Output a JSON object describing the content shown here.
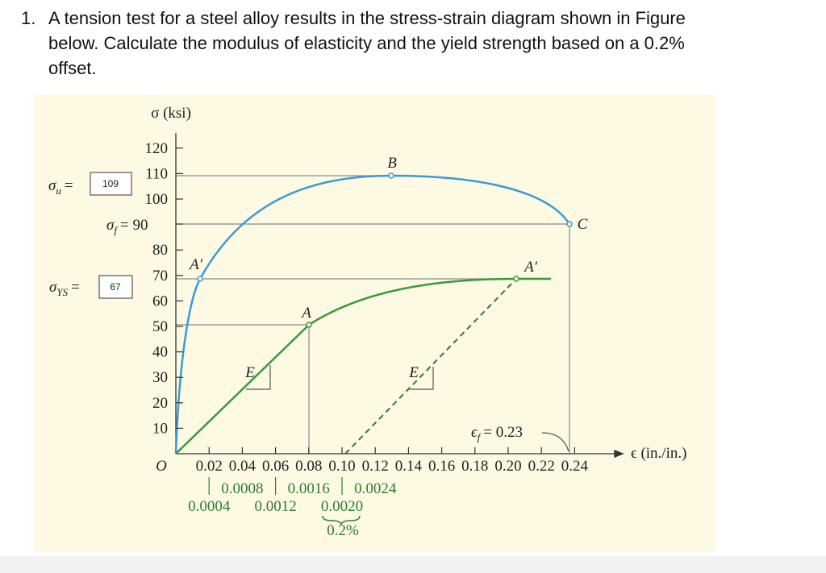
{
  "question": {
    "number": "1.",
    "lines": [
      "A tension test for a steel alloy results in the stress-strain diagram shown in Figure",
      "below. Calculate the modulus of elasticity and the yield strength based on a 0.2%",
      "offset."
    ]
  },
  "figure": {
    "y_axis_label": "σ (ksi)",
    "x_axis_label": "ϵ (in./in.)",
    "origin": "O",
    "y_tick_labels": [
      "120",
      "110",
      "100",
      "80",
      "70",
      "60",
      "50",
      "40",
      "30",
      "20",
      "10"
    ],
    "x_tick_labels": [
      "0.02",
      "0.04",
      "0.06",
      "0.08",
      "0.10",
      "0.12",
      "0.14",
      "0.16",
      "0.18",
      "0.20",
      "0.22",
      "0.24"
    ],
    "small_strain_upper": [
      "0.0008",
      "0.0016",
      "0.0024"
    ],
    "small_strain_lower": [
      "0.0004",
      "0.0012",
      "0.0020"
    ],
    "offset_label": "0.2%",
    "sigma_f": {
      "symbol": "σ",
      "sub": "f",
      "text": "= 90"
    },
    "sigma_u": {
      "symbol": "σ",
      "sub": "u",
      "eq": "=",
      "answer": "109"
    },
    "sigma_ys": {
      "symbol": "σ",
      "sub": "YS",
      "eq": "=",
      "answer": "67"
    },
    "epsilon_f": {
      "symbol": "ϵ",
      "sub": "f",
      "text": "= 0.23"
    },
    "point_labels": {
      "A_prime_blue": "A′",
      "A": "A",
      "B": "B",
      "C": "C",
      "A_prime_green": "A′"
    },
    "slope_labels": [
      "E",
      "E"
    ]
  }
}
